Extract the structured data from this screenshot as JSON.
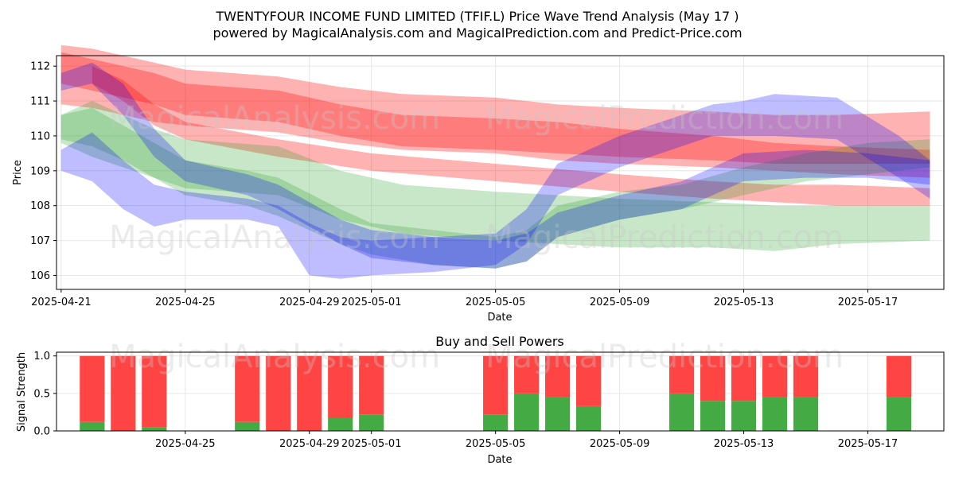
{
  "title_line1": "TWENTYFOUR INCOME FUND LIMITED  (TFIF.L) Price Wave Trend Analysis (May 17 )",
  "title_line2": "powered by MagicalAnalysis.com and MagicalPrediction.com and Predict-Price.com",
  "watermarks": [
    "MagicalAnalysis.com",
    "MagicalPrediction.com"
  ],
  "colors": {
    "red": "#ff0000",
    "green": "#2ca02c",
    "blue": "#0000ff",
    "bar_red": "#ff4444",
    "bar_green": "#44aa44"
  },
  "chart_data": [
    {
      "type": "area",
      "xlabel": "Date",
      "ylabel": "Price",
      "xlim": [
        "2025-04-21",
        "2025-05-20"
      ],
      "ylim": [
        105.6,
        112.3
      ],
      "yticks": [
        106,
        107,
        108,
        109,
        110,
        111,
        112
      ],
      "xticks": [
        "2025-04-21",
        "2025-04-25",
        "2025-04-29",
        "2025-05-01",
        "2025-05-05",
        "2025-05-09",
        "2025-05-13",
        "2025-05-17"
      ],
      "grid": true,
      "bands": [
        {
          "color": "red",
          "x": [
            "2025-04-21",
            "2025-04-22",
            "2025-04-24",
            "2025-04-25",
            "2025-04-28",
            "2025-04-30",
            "2025-05-02",
            "2025-05-05",
            "2025-05-07",
            "2025-05-09",
            "2025-05-12",
            "2025-05-14",
            "2025-05-16",
            "2025-05-19"
          ],
          "upper": [
            112.6,
            112.5,
            112.1,
            111.9,
            111.7,
            111.4,
            111.2,
            111.1,
            110.9,
            110.8,
            110.7,
            110.6,
            110.6,
            110.7
          ],
          "lower": [
            110.9,
            110.8,
            110.4,
            110.3,
            110.1,
            109.8,
            109.6,
            109.5,
            109.3,
            109.2,
            109.1,
            109.0,
            108.9,
            108.8
          ]
        },
        {
          "color": "red",
          "x": [
            "2025-04-21",
            "2025-04-22",
            "2025-04-24",
            "2025-04-25",
            "2025-04-28",
            "2025-04-30",
            "2025-05-02",
            "2025-05-05",
            "2025-05-07",
            "2025-05-09",
            "2025-05-12",
            "2025-05-14",
            "2025-05-16",
            "2025-05-19"
          ],
          "upper": [
            112.4,
            112.2,
            111.8,
            111.5,
            111.3,
            110.9,
            110.6,
            110.5,
            110.4,
            110.2,
            110.0,
            109.8,
            109.7,
            109.6
          ],
          "lower": [
            111.5,
            111.3,
            110.9,
            110.6,
            110.4,
            110.0,
            109.7,
            109.6,
            109.5,
            109.4,
            109.3,
            109.2,
            109.2,
            109.2
          ]
        },
        {
          "color": "red",
          "x": [
            "2025-04-22",
            "2025-04-23",
            "2025-04-24",
            "2025-04-25",
            "2025-04-28",
            "2025-05-01",
            "2025-05-05",
            "2025-05-09",
            "2025-05-12",
            "2025-05-14",
            "2025-05-16",
            "2025-05-19"
          ],
          "upper": [
            112.0,
            111.6,
            110.9,
            110.4,
            109.9,
            109.5,
            109.2,
            108.9,
            108.7,
            108.6,
            108.6,
            108.5
          ],
          "lower": [
            111.5,
            111.0,
            110.3,
            109.9,
            109.4,
            109.0,
            108.7,
            108.4,
            108.2,
            108.1,
            108.0,
            108.0
          ]
        },
        {
          "color": "green",
          "x": [
            "2025-04-21",
            "2025-04-22",
            "2025-04-24",
            "2025-04-25",
            "2025-04-28",
            "2025-04-30",
            "2025-05-02",
            "2025-05-05",
            "2025-05-07",
            "2025-05-09",
            "2025-05-12",
            "2025-05-14",
            "2025-05-16",
            "2025-05-19"
          ],
          "upper": [
            110.6,
            111.0,
            110.2,
            109.9,
            109.7,
            109.0,
            108.6,
            108.4,
            108.3,
            108.2,
            108.1,
            108.0,
            108.0,
            108.0
          ],
          "lower": [
            109.8,
            109.4,
            108.8,
            108.5,
            108.3,
            107.6,
            107.2,
            107.0,
            106.9,
            106.8,
            106.8,
            106.7,
            106.9,
            107.0
          ]
        },
        {
          "color": "green",
          "x": [
            "2025-04-21",
            "2025-04-22",
            "2025-04-23",
            "2025-04-24",
            "2025-04-25",
            "2025-04-27",
            "2025-04-28",
            "2025-04-30",
            "2025-05-01",
            "2025-05-03",
            "2025-05-05",
            "2025-05-06",
            "2025-05-07",
            "2025-05-09",
            "2025-05-11",
            "2025-05-13",
            "2025-05-15",
            "2025-05-17",
            "2025-05-19"
          ],
          "upper": [
            110.6,
            110.8,
            110.3,
            109.8,
            109.3,
            109.0,
            108.8,
            107.9,
            107.5,
            107.3,
            107.1,
            107.3,
            108.0,
            108.4,
            108.6,
            109.1,
            109.5,
            109.8,
            109.9
          ],
          "lower": [
            109.9,
            109.7,
            109.3,
            108.8,
            108.3,
            108.0,
            107.7,
            106.9,
            106.6,
            106.3,
            106.2,
            106.4,
            107.1,
            107.6,
            107.9,
            108.3,
            108.7,
            108.9,
            109.1
          ]
        },
        {
          "color": "blue",
          "x": [
            "2025-04-21",
            "2025-04-22",
            "2025-04-23",
            "2025-04-24",
            "2025-04-25",
            "2025-04-27",
            "2025-04-28",
            "2025-04-29",
            "2025-04-30",
            "2025-05-01",
            "2025-05-03",
            "2025-05-05",
            "2025-05-06",
            "2025-05-07",
            "2025-05-09",
            "2025-05-11",
            "2025-05-12",
            "2025-05-13",
            "2025-05-14",
            "2025-05-16",
            "2025-05-18",
            "2025-05-19"
          ],
          "upper": [
            109.6,
            110.1,
            109.3,
            108.6,
            108.4,
            108.2,
            108.0,
            107.5,
            107.1,
            107.0,
            107.1,
            107.2,
            107.9,
            109.2,
            110.0,
            110.6,
            110.9,
            111.0,
            111.2,
            111.1,
            110.0,
            109.3
          ],
          "lower": [
            109.0,
            108.7,
            107.9,
            107.4,
            107.6,
            107.6,
            107.4,
            106.0,
            105.9,
            106.0,
            106.1,
            106.3,
            106.9,
            108.3,
            109.1,
            109.7,
            110.0,
            110.0,
            110.0,
            109.9,
            108.8,
            108.2
          ]
        },
        {
          "color": "blue",
          "x": [
            "2025-04-21",
            "2025-04-22",
            "2025-04-23",
            "2025-04-24",
            "2025-04-25",
            "2025-04-27",
            "2025-04-28",
            "2025-04-30",
            "2025-05-01",
            "2025-05-03",
            "2025-05-05",
            "2025-05-06",
            "2025-05-07",
            "2025-05-09",
            "2025-05-11",
            "2025-05-13",
            "2025-05-15",
            "2025-05-17",
            "2025-05-19"
          ],
          "upper": [
            111.8,
            112.1,
            111.5,
            110.2,
            109.3,
            108.9,
            108.6,
            107.6,
            107.3,
            107.1,
            107.0,
            107.2,
            107.8,
            108.3,
            108.7,
            109.5,
            109.6,
            109.5,
            109.3
          ],
          "lower": [
            111.3,
            111.5,
            110.6,
            109.4,
            108.7,
            108.3,
            107.9,
            106.9,
            106.5,
            106.3,
            106.2,
            106.4,
            107.1,
            107.6,
            107.9,
            108.7,
            108.8,
            108.8,
            108.6
          ]
        }
      ]
    },
    {
      "type": "bar",
      "title": "Buy and Sell Powers",
      "xlabel": "Date",
      "ylabel": "Signal Strength",
      "ylim": [
        0,
        1.05
      ],
      "yticks": [
        "0.0",
        "0.5",
        "1.0"
      ],
      "xticks": [
        "2025-04-25",
        "2025-04-29",
        "2025-05-01",
        "2025-05-05",
        "2025-05-09",
        "2025-05-13",
        "2025-05-17"
      ],
      "xlim": [
        "2025-04-21",
        "2025-05-20"
      ],
      "grid": true,
      "bars": [
        {
          "date": "2025-04-22",
          "buy": 0.12,
          "sell": 0.88
        },
        {
          "date": "2025-04-23",
          "buy": 0.0,
          "sell": 1.0
        },
        {
          "date": "2025-04-24",
          "buy": 0.05,
          "sell": 0.95
        },
        {
          "date": "2025-04-27",
          "buy": 0.12,
          "sell": 0.88
        },
        {
          "date": "2025-04-28",
          "buy": 0.0,
          "sell": 1.0
        },
        {
          "date": "2025-04-29",
          "buy": 0.0,
          "sell": 1.0
        },
        {
          "date": "2025-04-30",
          "buy": 0.17,
          "sell": 0.83
        },
        {
          "date": "2025-05-01",
          "buy": 0.22,
          "sell": 0.78
        },
        {
          "date": "2025-05-05",
          "buy": 0.22,
          "sell": 0.78
        },
        {
          "date": "2025-05-06",
          "buy": 0.5,
          "sell": 0.5
        },
        {
          "date": "2025-05-07",
          "buy": 0.45,
          "sell": 0.55
        },
        {
          "date": "2025-05-08",
          "buy": 0.33,
          "sell": 0.67
        },
        {
          "date": "2025-05-11",
          "buy": 0.5,
          "sell": 0.5
        },
        {
          "date": "2025-05-12",
          "buy": 0.4,
          "sell": 0.6
        },
        {
          "date": "2025-05-13",
          "buy": 0.4,
          "sell": 0.6
        },
        {
          "date": "2025-05-14",
          "buy": 0.45,
          "sell": 0.55
        },
        {
          "date": "2025-05-15",
          "buy": 0.45,
          "sell": 0.55
        },
        {
          "date": "2025-05-18",
          "buy": 0.45,
          "sell": 0.55
        }
      ]
    }
  ]
}
